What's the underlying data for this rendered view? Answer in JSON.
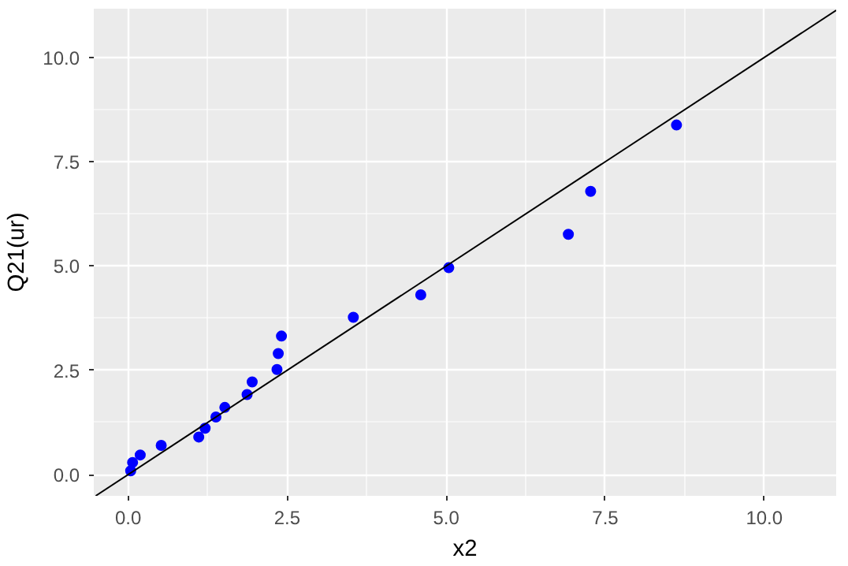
{
  "chart_data": {
    "type": "scatter",
    "xlabel": "x2",
    "ylabel": "Q21(ur)",
    "xlim": [
      -0.54,
      11.13
    ],
    "ylim": [
      -0.51,
      11.17
    ],
    "xticks": [
      {
        "value": 0,
        "label": "0.0"
      },
      {
        "value": 2.5,
        "label": "2.5"
      },
      {
        "value": 5,
        "label": "5.0"
      },
      {
        "value": 7.5,
        "label": "7.5"
      },
      {
        "value": 10,
        "label": "10.0"
      }
    ],
    "yticks": [
      {
        "value": 0,
        "label": "0.0"
      },
      {
        "value": 2.5,
        "label": "2.5"
      },
      {
        "value": 5,
        "label": "5.0"
      },
      {
        "value": 7.5,
        "label": "7.5"
      },
      {
        "value": 10,
        "label": "10.0"
      }
    ],
    "grid": true,
    "series": [
      {
        "marker": "circle",
        "color": "#0000ff",
        "x": [
          0.04,
          0.07,
          0.19,
          0.52,
          1.11,
          1.21,
          1.38,
          1.52,
          1.87,
          1.95,
          2.34,
          2.36,
          2.41,
          3.54,
          4.6,
          5.04,
          6.92,
          7.27,
          8.62
        ],
        "values": [
          0.09,
          0.29,
          0.47,
          0.7,
          0.9,
          1.11,
          1.38,
          1.61,
          1.92,
          2.22,
          2.52,
          2.9,
          3.32,
          3.77,
          4.31,
          4.96,
          5.76,
          6.79,
          8.38
        ]
      },
      {
        "type": "line",
        "color": "#000000",
        "x": [
          -0.51,
          11.13
        ],
        "values": [
          -0.51,
          11.13
        ]
      }
    ]
  }
}
